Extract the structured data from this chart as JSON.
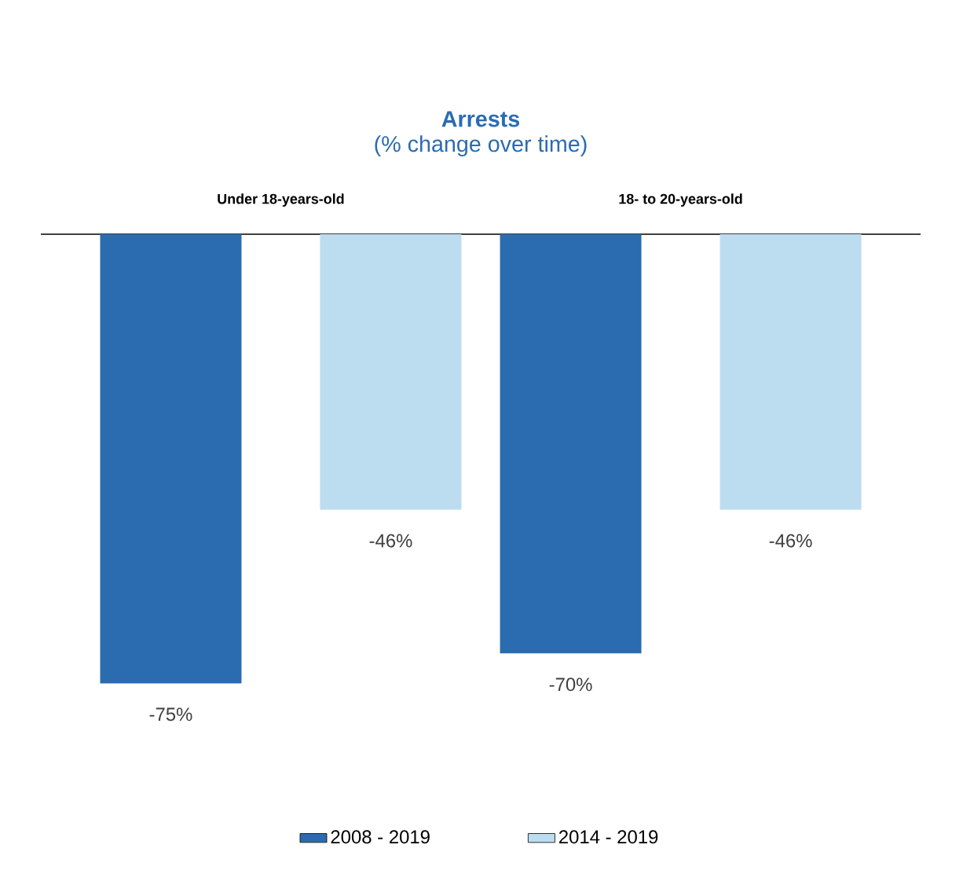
{
  "chart_data": {
    "type": "bar",
    "title": "Arrests",
    "subtitle": "(% change over time)",
    "categories": [
      "Under 18-years-old",
      "18- to 20-years-old"
    ],
    "series": [
      {
        "name": "2008 - 2019",
        "color": "#2b6cb0",
        "values": [
          -75,
          -70
        ],
        "value_labels": [
          "-75%",
          "-70%"
        ]
      },
      {
        "name": "2014 - 2019",
        "color": "#bcdcf0",
        "values": [
          -46,
          -46
        ],
        "value_labels": [
          "-46%",
          "-46%"
        ]
      }
    ],
    "legend": "bottom"
  }
}
